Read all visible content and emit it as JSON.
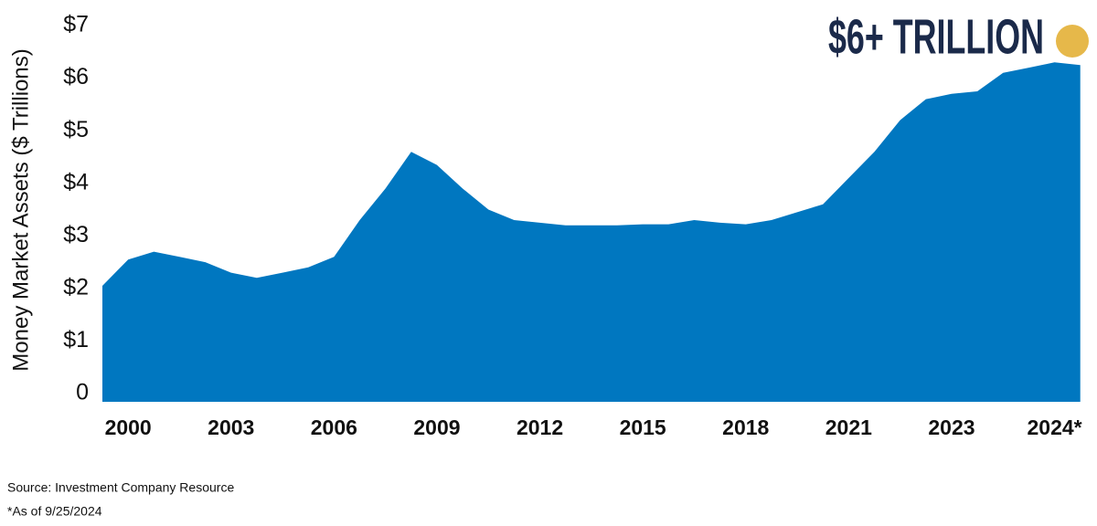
{
  "chart_data": {
    "type": "area",
    "annotation": "$6+ TRILLION",
    "y_label": "Money Market Assets ($ Trillions)",
    "source": "Source: Investment Company Resource",
    "footnote": "*As of 9/25/2024",
    "color": "#0077c0",
    "categories": [
      null,
      "2000",
      null,
      null,
      null,
      "2003",
      null,
      null,
      null,
      "2006",
      null,
      null,
      null,
      "2009",
      null,
      null,
      null,
      "2012",
      null,
      null,
      null,
      "2015",
      null,
      null,
      null,
      "2018",
      null,
      null,
      null,
      "2021",
      null,
      null,
      null,
      "2023",
      null,
      null,
      null,
      "2024*",
      null
    ],
    "values": [
      2.05,
      2.55,
      2.7,
      2.6,
      2.5,
      2.3,
      2.2,
      2.3,
      2.4,
      2.6,
      3.3,
      3.9,
      4.6,
      4.35,
      3.9,
      3.5,
      3.3,
      3.25,
      3.2,
      3.2,
      3.2,
      3.22,
      3.22,
      3.3,
      3.25,
      3.22,
      3.3,
      3.45,
      3.6,
      4.1,
      4.6,
      5.2,
      5.6,
      5.7,
      5.75,
      6.1,
      6.2,
      6.3,
      6.25
    ],
    "ylim": [
      0,
      7
    ],
    "yticks": [
      0,
      {
        "value": 1,
        "label": "$1"
      },
      {
        "value": 2,
        "label": "$2"
      },
      {
        "value": 3,
        "label": "$3"
      },
      {
        "value": 4,
        "label": "$4"
      },
      {
        "value": 5,
        "label": "$5"
      },
      {
        "value": 6,
        "label": "$6"
      },
      {
        "value": 7,
        "label": "$7"
      }
    ],
    "grid": false
  }
}
